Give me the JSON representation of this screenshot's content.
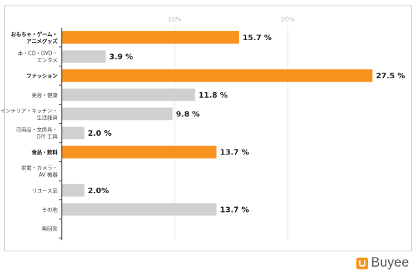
{
  "chart_data": {
    "type": "bar",
    "orientation": "horizontal",
    "categories": [
      [
        "おもちゃ・ゲーム・",
        "アニメグッズ"
      ],
      [
        "本・CD・DVD・",
        "エンタメ"
      ],
      [
        "ファッション"
      ],
      [
        "美容・健康"
      ],
      [
        "インテリア・キッチン・",
        "生活雑貨"
      ],
      [
        "日用品・文房具・",
        "DIY 工具"
      ],
      [
        "食品・飲料"
      ],
      [
        "家電・カメラ・",
        "AV 機器"
      ],
      [
        "リユース品"
      ],
      [
        "その他"
      ],
      [
        "無回答"
      ]
    ],
    "values": [
      15.7,
      3.9,
      27.5,
      11.8,
      9.8,
      2.0,
      13.7,
      null,
      2.0,
      13.7,
      null
    ],
    "value_labels": [
      "15.7 %",
      "3.9 %",
      "27.5 %",
      "11.8 %",
      "9.8 %",
      "2.0 %",
      "13.7 %",
      "",
      "2.0%",
      "13.7 %",
      ""
    ],
    "highlighted": [
      true,
      false,
      true,
      false,
      false,
      false,
      true,
      false,
      false,
      false,
      false
    ],
    "xlim": [
      0,
      28
    ],
    "xticks": [
      10,
      20
    ],
    "xtick_labels": [
      "10%",
      "20%"
    ],
    "grid": "vertical",
    "colors": {
      "highlight": "#f7931e",
      "normal": "#d0d0d0",
      "grid": "#e6e6e6",
      "axis": "#333333",
      "tick_label": "#bbbbbb",
      "value_label": "#222222",
      "category_label": "#444444"
    }
  },
  "brand": {
    "name": "Buyee",
    "icon": "shopping-bag-icon"
  }
}
